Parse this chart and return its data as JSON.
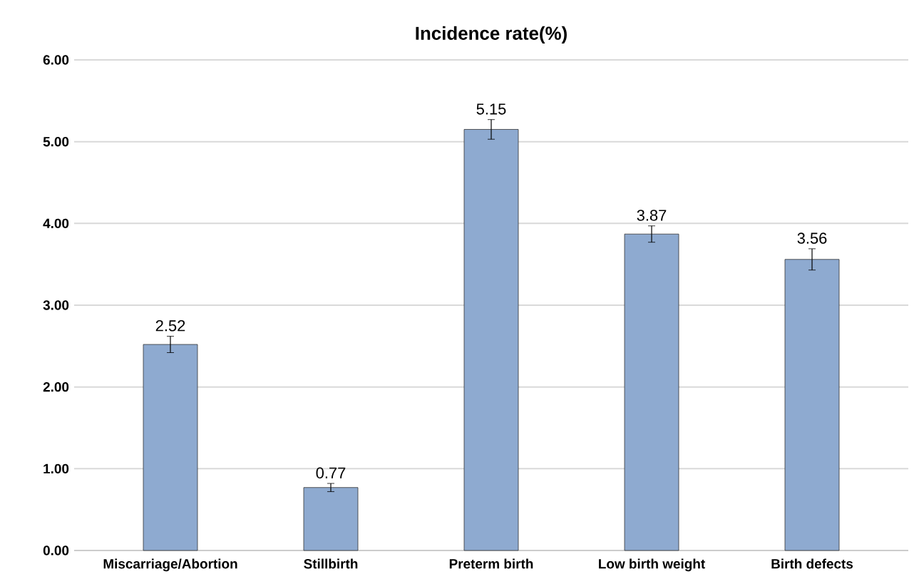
{
  "chart_data": {
    "type": "bar",
    "title": "Incidence rate(%)",
    "categories": [
      "Miscarriage/Abortion",
      "Stillbirth",
      "Preterm birth",
      "Low birth weight",
      "Birth defects"
    ],
    "values": [
      2.52,
      0.77,
      5.15,
      3.87,
      3.56
    ],
    "errors": [
      0.1,
      0.05,
      0.12,
      0.1,
      0.13
    ],
    "color": "#8eaad0",
    "data_labels": true,
    "grid": "y",
    "ylim": [
      0,
      6
    ],
    "yticks": [
      {
        "value": 0,
        "label": "0.00"
      },
      {
        "value": 1,
        "label": "1.00"
      },
      {
        "value": 2,
        "label": "2.00"
      },
      {
        "value": 3,
        "label": "3.00"
      },
      {
        "value": 4,
        "label": "4.00"
      },
      {
        "value": 5,
        "label": "5.00"
      },
      {
        "value": 6,
        "label": "6.00"
      }
    ]
  }
}
